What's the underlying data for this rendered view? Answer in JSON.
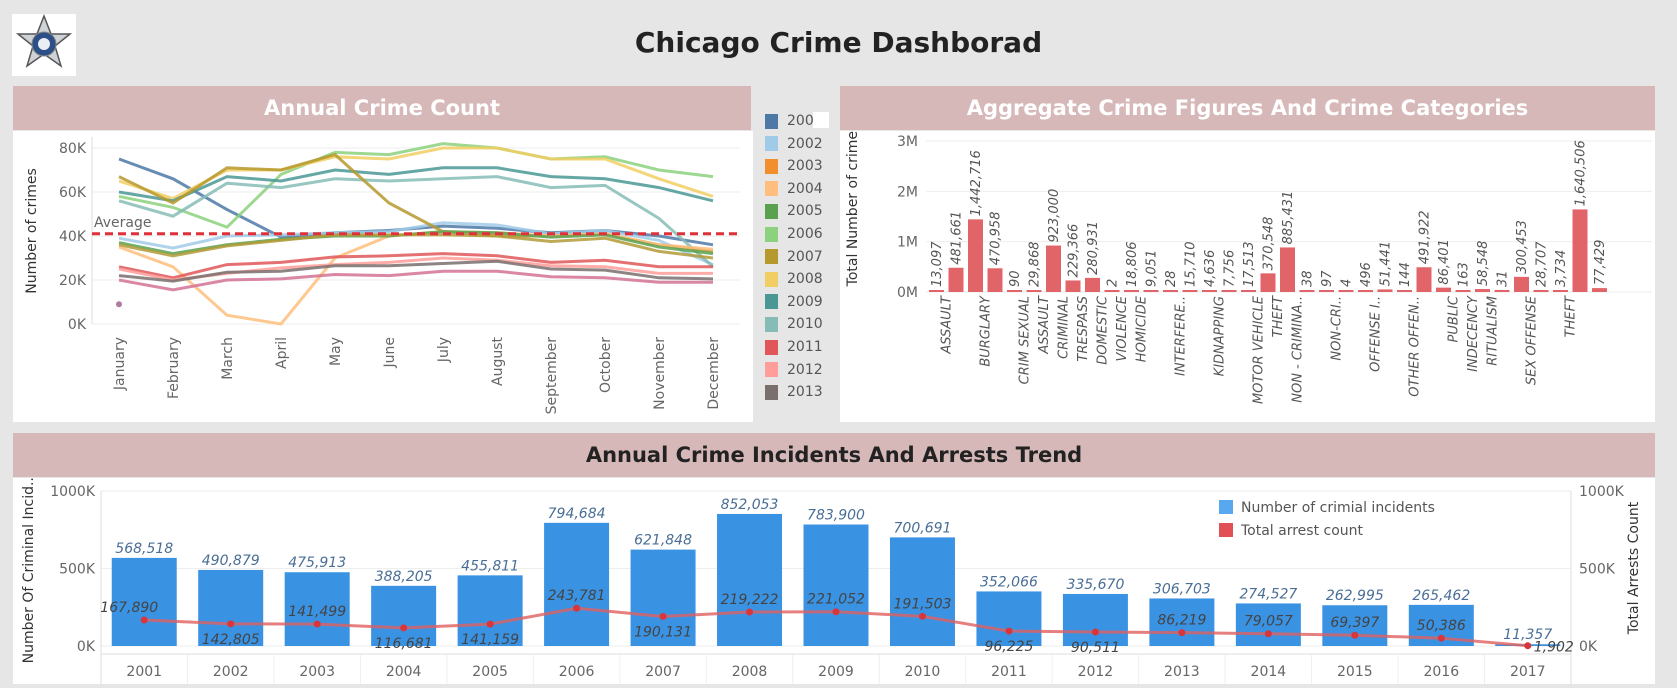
{
  "dashboard": {
    "title": "Chicago Crime Dashborad"
  },
  "panels": {
    "line": {
      "title": "Annual Crime Count"
    },
    "bar": {
      "title": "Aggregate Crime Figures And Crime Categories"
    },
    "combo": {
      "title": "Annual Crime Incidents And Arrests Trend"
    }
  },
  "legend_years": [
    {
      "label": "200",
      "color": "#4e79a7"
    },
    {
      "label": "2002",
      "color": "#a0cbe8"
    },
    {
      "label": "2003",
      "color": "#f28e2b"
    },
    {
      "label": "2004",
      "color": "#ffbe7d"
    },
    {
      "label": "2005",
      "color": "#59a14f"
    },
    {
      "label": "2006",
      "color": "#8cd17d"
    },
    {
      "label": "2007",
      "color": "#b6992d"
    },
    {
      "label": "2008",
      "color": "#f1ce63"
    },
    {
      "label": "2009",
      "color": "#499894"
    },
    {
      "label": "2010",
      "color": "#86bcb6"
    },
    {
      "label": "2011",
      "color": "#e15759"
    },
    {
      "label": "2012",
      "color": "#ff9d9a"
    },
    {
      "label": "2013",
      "color": "#79706e"
    }
  ],
  "chart_data": [
    {
      "type": "line",
      "title": "Annual Crime Count",
      "ylabel": "Number of crimes",
      "ylim": [
        0,
        85000
      ],
      "yticks": [
        "0K",
        "20K",
        "40K",
        "60K",
        "80K"
      ],
      "categories": [
        "January",
        "February",
        "March",
        "April",
        "May",
        "June",
        "July",
        "August",
        "September",
        "October",
        "November",
        "December"
      ],
      "reference_line": {
        "label": "Average",
        "value": 41000
      },
      "series": [
        {
          "color": "#4e79a7",
          "values": [
            75000,
            66000,
            52000,
            39500,
            41500,
            42500,
            44500,
            43500,
            41500,
            42500,
            40000,
            36000
          ]
        },
        {
          "color": "#a0cbe8",
          "values": [
            39000,
            34500,
            40000,
            40500,
            41500,
            42000,
            46000,
            45000,
            41000,
            42500,
            38000,
            27000
          ]
        },
        {
          "color": "#8cd17d",
          "values": [
            58000,
            53000,
            44000,
            68000,
            78000,
            77000,
            82000,
            80000,
            75000,
            76000,
            70000,
            67000
          ]
        },
        {
          "color": "#f1ce63",
          "values": [
            65000,
            57000,
            70000,
            70000,
            76000,
            75000,
            80000,
            80000,
            75000,
            75000,
            66000,
            58000
          ]
        },
        {
          "color": "#499894",
          "values": [
            60000,
            56000,
            67000,
            65000,
            70000,
            68000,
            71000,
            71000,
            67000,
            66000,
            62000,
            56000
          ]
        },
        {
          "color": "#86bcb6",
          "values": [
            56000,
            49000,
            64000,
            62000,
            66000,
            65000,
            66000,
            67000,
            62000,
            63000,
            48000,
            26000
          ]
        },
        {
          "color": "#b6992d",
          "values": [
            67000,
            55000,
            71000,
            70000,
            77000,
            55000,
            42000,
            40000,
            40000,
            41000,
            36000,
            33000
          ]
        },
        {
          "color": "#ffbe7d",
          "values": [
            35000,
            26000,
            4000,
            0,
            30000,
            40000,
            42000,
            41500,
            40000,
            41000,
            36000,
            34000
          ]
        },
        {
          "color": "#59a14f",
          "values": [
            37000,
            32000,
            36000,
            38500,
            40000,
            40000,
            42000,
            41500,
            39500,
            40500,
            35000,
            32000
          ]
        },
        {
          "color": "#b39a37",
          "values": [
            36000,
            31000,
            35500,
            38000,
            40500,
            40500,
            40500,
            40000,
            37500,
            39000,
            33000,
            30000
          ]
        },
        {
          "color": "#e15759",
          "values": [
            26000,
            21000,
            27000,
            28000,
            30500,
            31000,
            32000,
            31000,
            28000,
            29000,
            26000,
            26000
          ]
        },
        {
          "color": "#ff9d9a",
          "values": [
            25000,
            20000,
            23000,
            25500,
            27000,
            28000,
            30000,
            29000,
            26500,
            26000,
            23000,
            23000
          ]
        },
        {
          "color": "#79706e",
          "values": [
            22000,
            19500,
            23500,
            24000,
            26500,
            26500,
            27500,
            28500,
            25000,
            24500,
            21000,
            20500
          ]
        },
        {
          "color": "#d37295",
          "values": [
            20000,
            15500,
            20000,
            20500,
            22500,
            22000,
            24000,
            24000,
            21500,
            21000,
            19000,
            19000
          ]
        },
        {
          "color": "#b07aa1",
          "values": [
            9000,
            null,
            null,
            null,
            null,
            null,
            null,
            null,
            null,
            null,
            null,
            null
          ]
        }
      ]
    },
    {
      "type": "bar",
      "title": "Aggregate Crime Figures And Crime Categories",
      "ylabel": "Total Number of crimes",
      "ylim": [
        0,
        3000000
      ],
      "yticks": [
        "0M",
        "1M",
        "2M",
        "3M"
      ],
      "category_labels": [
        {
          "text": "ASSAULT",
          "slot": 1
        },
        {
          "text": "BURGLARY",
          "slot": 3
        },
        {
          "text": "CRIM SEXUAL",
          "slot": 5
        },
        {
          "text": "ASSAULT",
          "slot": 6
        },
        {
          "text": "CRIMINAL",
          "slot": 7
        },
        {
          "text": "TRESPASS",
          "slot": 8
        },
        {
          "text": "DOMESTIC",
          "slot": 9
        },
        {
          "text": "VIOLENCE",
          "slot": 10
        },
        {
          "text": "HOMICIDE",
          "slot": 11
        },
        {
          "text": "INTERFERE..",
          "slot": 13
        },
        {
          "text": "KIDNAPPING",
          "slot": 15
        },
        {
          "text": "MOTOR VEHICLE",
          "slot": 17
        },
        {
          "text": "THEFT",
          "slot": 18
        },
        {
          "text": "NON - CRIMINA..",
          "slot": 19
        },
        {
          "text": "NON-CRI..",
          "slot": 21
        },
        {
          "text": "OFFENSE I..",
          "slot": 23
        },
        {
          "text": "OTHER OFFEN..",
          "slot": 25
        },
        {
          "text": "PUBLIC",
          "slot": 27
        },
        {
          "text": "INDECENCY",
          "slot": 28
        },
        {
          "text": "RITUALISM",
          "slot": 29
        },
        {
          "text": "SEX OFFENSE",
          "slot": 31
        },
        {
          "text": "THEFT",
          "slot": 33
        }
      ],
      "values": [
        13097,
        481661,
        1442716,
        470958,
        90,
        29868,
        923000,
        229366,
        280931,
        2,
        18806,
        9051,
        28,
        15710,
        4636,
        7756,
        17513,
        370548,
        885431,
        38,
        97,
        4,
        496,
        51441,
        144,
        491922,
        86401,
        163,
        58548,
        31,
        300453,
        28707,
        3734,
        1640506,
        77429
      ],
      "labels": [
        "13,097",
        "481,661",
        "1,442,716",
        "470,958",
        "90",
        "29,868",
        "923,000",
        "229,366",
        "280,931",
        "2",
        "18,806",
        "9,051",
        "28",
        "15,710",
        "4,636",
        "7,756",
        "17,513",
        "370,548",
        "885,431",
        "38",
        "97",
        "4",
        "496",
        "51,441",
        "144",
        "491,922",
        "86,401",
        "163",
        "58,548",
        "31",
        "300,453",
        "28,707",
        "3,734",
        "1,640,506",
        "77,429"
      ]
    },
    {
      "type": "bar",
      "title": "Annual Crime Incidents And Arrests Trend",
      "ylabel": "Number Of Criminal Incid...",
      "y2label": "Total Arrests Count",
      "ylim": [
        0,
        1000000
      ],
      "yticks": [
        "0K",
        "500K",
        "1000K"
      ],
      "categories": [
        "2001",
        "2002",
        "2003",
        "2004",
        "2005",
        "2006",
        "2007",
        "2008",
        "2009",
        "2010",
        "2011",
        "2012",
        "2013",
        "2014",
        "2015",
        "2016",
        "2017"
      ],
      "series": [
        {
          "name": "Number of crimial incidents",
          "type": "bar",
          "color": "#3a92e3",
          "values": [
            568518,
            490879,
            475913,
            388205,
            455811,
            794684,
            621848,
            852053,
            783900,
            700691,
            352066,
            335670,
            306703,
            274527,
            262995,
            265462,
            11357
          ],
          "labels": [
            "568,518",
            "490,879",
            "475,913",
            "388,205",
            "455,811",
            "794,684",
            "621,848",
            "852,053",
            "783,900",
            "700,691",
            "352,066",
            "335,670",
            "306,703",
            "274,527",
            "262,995",
            "265,462",
            "11,357"
          ]
        },
        {
          "name": "Total arrest count",
          "type": "line",
          "color": "#e06060",
          "values": [
            167890,
            142805,
            141499,
            116681,
            141159,
            243781,
            190131,
            219222,
            221052,
            191503,
            96225,
            90511,
            86219,
            79057,
            69397,
            50386,
            1902
          ],
          "labels": [
            "167,890",
            "142,805",
            "141,499",
            "116,681",
            "141,159",
            "243,781",
            "190,131",
            "219,222",
            "221,052",
            "191,503",
            "96,225",
            "90,511",
            "86,219",
            "79,057",
            "69,397",
            "50,386",
            "1,902"
          ]
        }
      ]
    }
  ]
}
